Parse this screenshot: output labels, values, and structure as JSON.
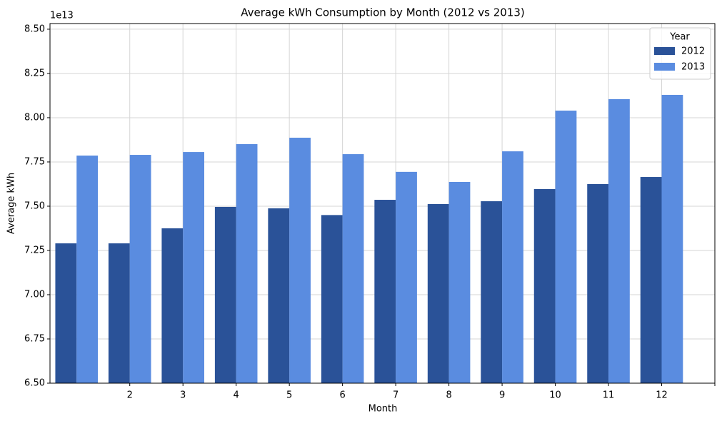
{
  "chart_data": {
    "type": "bar",
    "title": "Average kWh Consumption by Month (2012 vs 2013)",
    "x_label": "Month",
    "y_label": "Average kWh",
    "y_offset_label": "1e13",
    "categories": [
      null,
      "2",
      "3",
      "4",
      "5",
      "6",
      "7",
      "8",
      "9",
      "10",
      "11",
      "12"
    ],
    "xlim": [
      -0.5,
      12
    ],
    "series": [
      {
        "name": "2012",
        "color": "#2a5298",
        "values": [
          7.29,
          7.29,
          7.375,
          7.496,
          7.488,
          7.45,
          7.536,
          7.512,
          7.528,
          7.597,
          7.625,
          7.665
        ]
      },
      {
        "name": "2013",
        "color": "#5a8ce0",
        "values": [
          7.786,
          7.79,
          7.806,
          7.851,
          7.887,
          7.794,
          7.694,
          7.637,
          7.81,
          8.04,
          8.105,
          8.129
        ]
      }
    ],
    "ylim": [
      6.5,
      8.532
    ],
    "yticks": [
      {
        "value": 6.5,
        "label": "6.50"
      },
      {
        "value": 6.75,
        "label": "6.75"
      },
      {
        "value": 7.0,
        "label": "7.00"
      },
      {
        "value": 7.25,
        "label": "7.25"
      },
      {
        "value": 7.5,
        "label": "7.50"
      },
      {
        "value": 7.75,
        "label": "7.75"
      },
      {
        "value": 8.0,
        "label": "8.00"
      },
      {
        "value": 8.25,
        "label": "8.25"
      },
      {
        "value": 8.5,
        "label": "8.50"
      }
    ],
    "grid": true,
    "legend_title": "Year",
    "legend_position": "upper right"
  }
}
